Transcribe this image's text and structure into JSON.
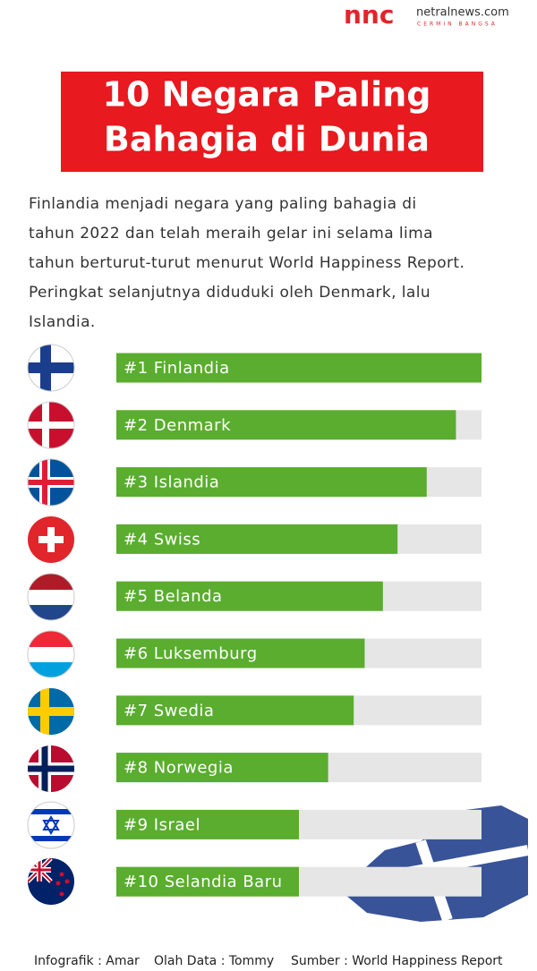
{
  "brand": {
    "logo": "nnc",
    "site": "netralnews.com",
    "tagline": "CERMIN BANGSA"
  },
  "chart_data": {
    "type": "bar",
    "title": [
      "10 Negara Paling",
      "Bahagia di Dunia"
    ],
    "subtitle": "Finlandia menjadi negara yang paling bahagia di tahun 2022 dan telah meraih gelar ini selama lima tahun berturut-turut menurut World Happiness Report. Peringkat selanjutnya diduduki oleh Denmark, lalu Islandia.",
    "categories": [
      "#1 Finlandia",
      "#2 Denmark",
      "#3 Islandia",
      "#4 Swiss",
      "#5 Belanda",
      "#6 Luksemburg",
      "#7 Swedia",
      "#8 Norwegia",
      "#9 Israel",
      "#10 Selandia Baru"
    ],
    "values": [
      100,
      93,
      85,
      77,
      73,
      68,
      65,
      58,
      50,
      50
    ],
    "xlim": [
      0,
      100
    ],
    "color": "#5aad2e",
    "track_color": "#e6e6e6"
  },
  "footer": [
    "Infografik : Amar",
    "Olah Data : Tommy",
    "Sumber : World Happiness Report"
  ]
}
